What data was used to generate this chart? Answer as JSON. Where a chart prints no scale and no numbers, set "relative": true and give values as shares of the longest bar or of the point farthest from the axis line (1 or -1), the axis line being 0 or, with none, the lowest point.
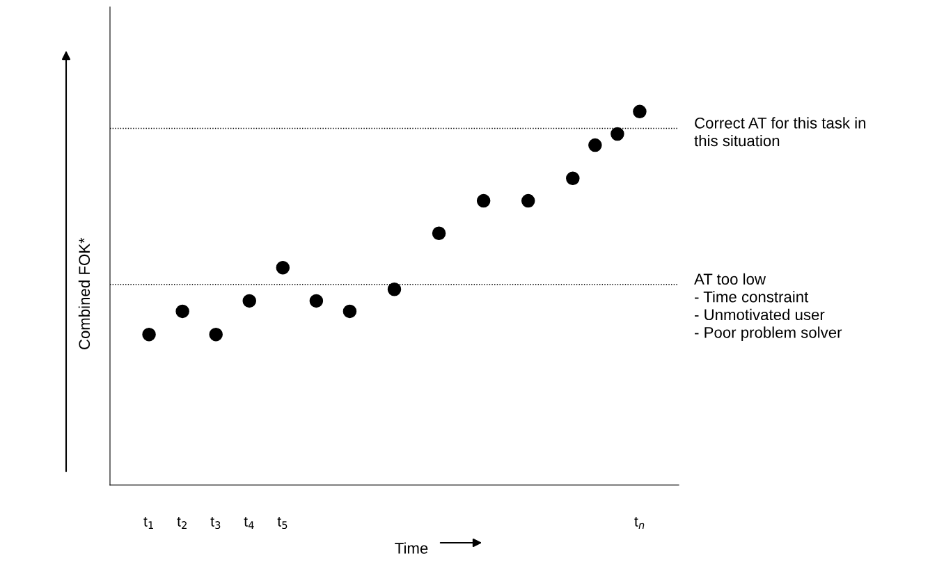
{
  "chart_data": {
    "type": "scatter",
    "relative": true,
    "xlabel": "Time",
    "ylabel": "Combined FOK*",
    "categories": [
      "t$_{1}$",
      null,
      null,
      "t$_{2}$",
      null,
      null,
      "t$_{3}$",
      null,
      null,
      "t$_{4}$",
      null,
      null,
      "t$_{5}$",
      null,
      null,
      null,
      null,
      null,
      null,
      null,
      null,
      null,
      null,
      null,
      null,
      null,
      null,
      null,
      null,
      null,
      null,
      null,
      null,
      null,
      null,
      null,
      null,
      null,
      null,
      null,
      null,
      null,
      null,
      null,
      "t$_{n}$"
    ],
    "series": [
      {
        "color": "#000000",
        "values": [
          0.403,
          null,
          null,
          0.465,
          null,
          null,
          0.403,
          null,
          null,
          0.493,
          null,
          null,
          0.582,
          null,
          null,
          0.493,
          null,
          null,
          0.465,
          null,
          null,
          null,
          0.524,
          null,
          null,
          null,
          0.674,
          null,
          null,
          null,
          0.761,
          null,
          null,
          null,
          0.761,
          null,
          null,
          null,
          0.821,
          null,
          0.91,
          null,
          0.94,
          null,
          1.0
        ]
      }
    ],
    "marker": "circle",
    "grid": false,
    "legend": false,
    "ref_lines": [
      {
        "axis": "y",
        "value": 0.955,
        "label": "Correct AT for this task in\nthis situation",
        "color": "#000000",
        "line_style": "dotted"
      },
      {
        "axis": "y",
        "value": 0.537,
        "label": "AT too low\n- Time constraint\n- Unmotivated user\n- Poor problem solver",
        "color": "#000000",
        "line_style": "dotted"
      }
    ]
  }
}
